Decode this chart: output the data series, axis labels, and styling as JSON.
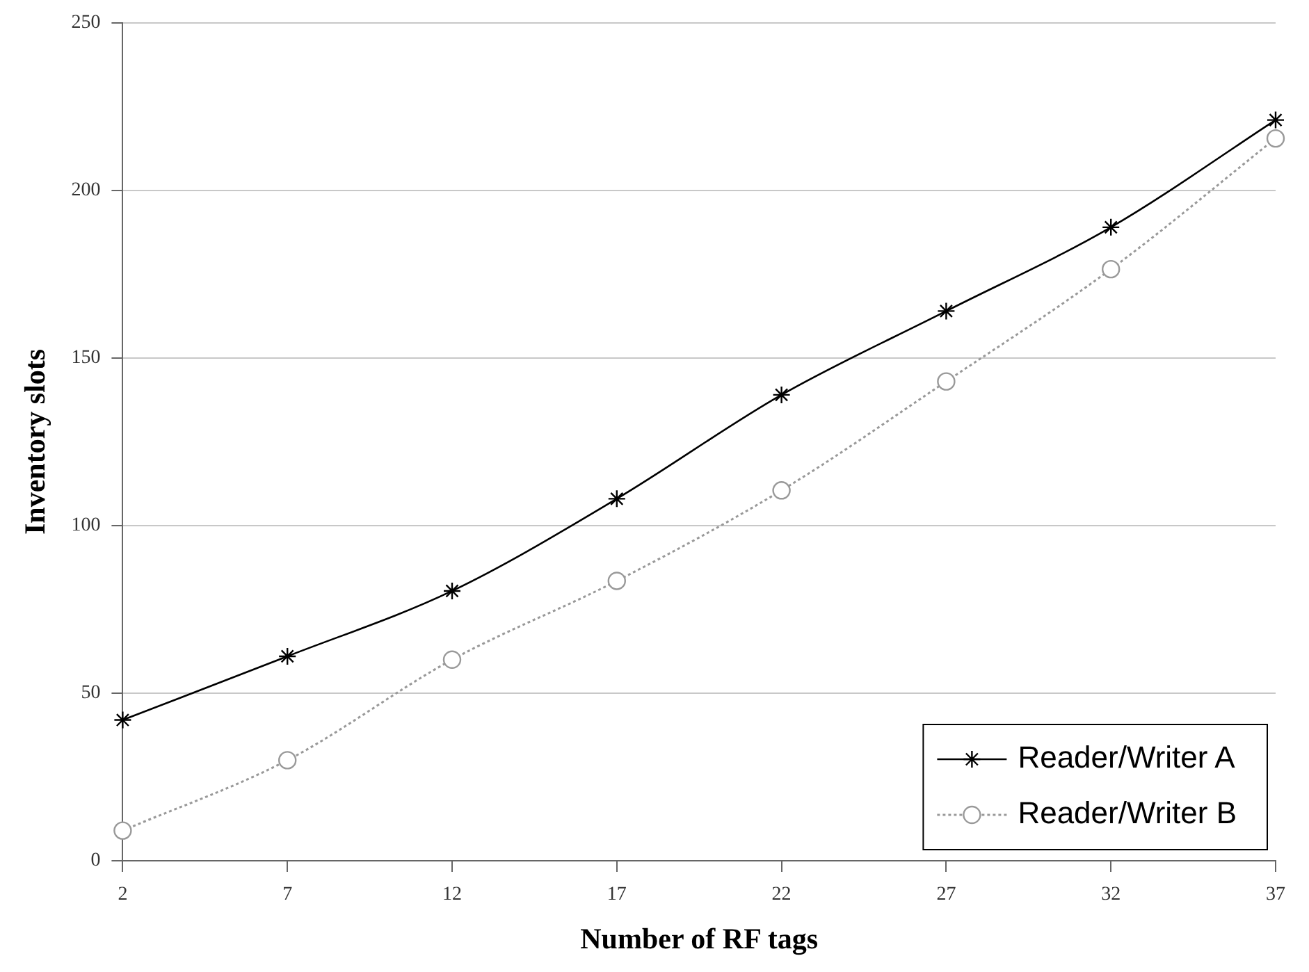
{
  "chart_data": {
    "type": "line",
    "xlabel": "Number of RF tags",
    "ylabel": "Inventory slots",
    "x": [
      2,
      7,
      12,
      17,
      22,
      27,
      32,
      37
    ],
    "xlim": [
      2,
      37
    ],
    "xticks": [
      2,
      7,
      12,
      17,
      22,
      27,
      32,
      37
    ],
    "ylim": [
      0,
      250
    ],
    "yticks": [
      0,
      50,
      100,
      150,
      200,
      250
    ],
    "grid": "y",
    "legend": "bottom right",
    "series": [
      {
        "name": "Reader/Writer A",
        "color": "#000000",
        "marker": "cross",
        "line_style": "solid",
        "values": [
          42,
          61,
          80.5,
          108,
          139,
          164,
          189,
          221
        ]
      },
      {
        "name": "Reader/Writer B",
        "color": "#999999",
        "marker": "circle",
        "line_style": "dotted",
        "values": [
          9,
          30,
          60,
          83.5,
          110.5,
          143,
          176.5,
          215.5
        ]
      }
    ]
  }
}
